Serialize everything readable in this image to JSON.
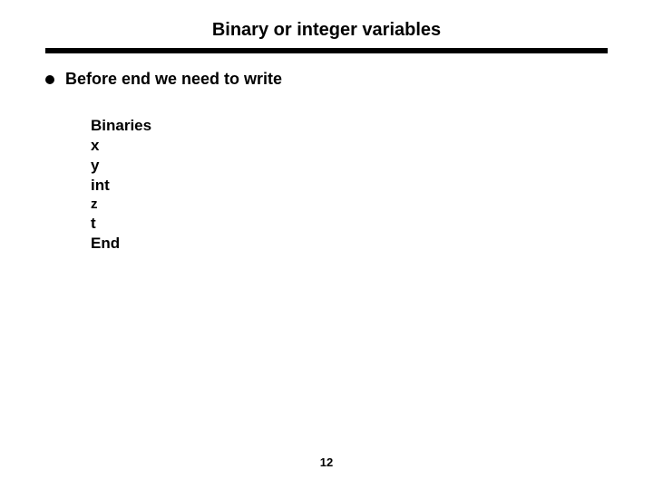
{
  "slide": {
    "title": "Binary or integer variables",
    "bullet": "Before end we need to write",
    "code": {
      "line1": "Binaries",
      "line2": "x",
      "line3": "y",
      "line4": "int",
      "line5": "z",
      "line6": "t",
      "line7": "End"
    },
    "page_number": "12"
  },
  "style": {
    "background_color": "#ffffff",
    "text_color": "#000000",
    "divider_color": "#000000",
    "title_fontsize": 20,
    "bullet_fontsize": 18,
    "code_fontsize": 17,
    "pagenum_fontsize": 13
  }
}
